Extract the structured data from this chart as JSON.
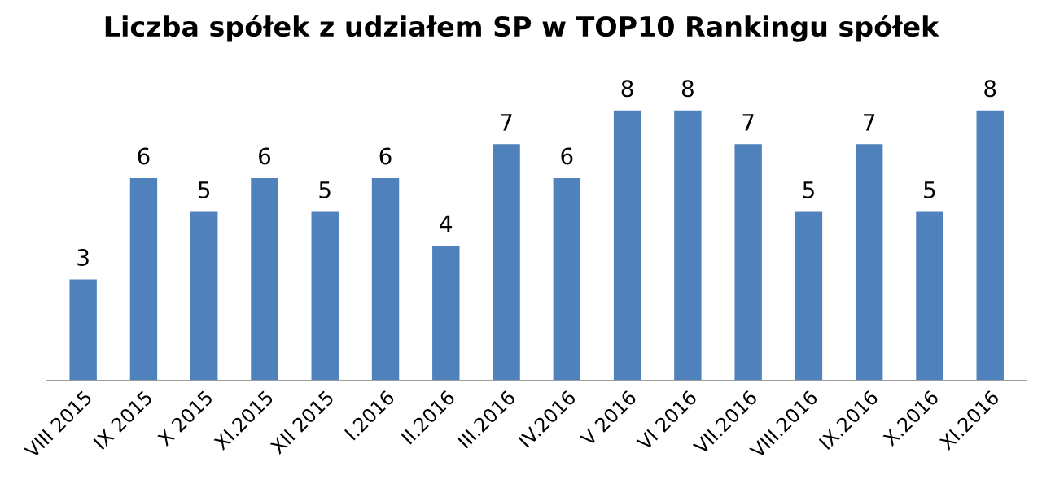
{
  "chart_data": {
    "type": "bar",
    "title": "Liczba spółek z udziałem SP w TOP10 Rankingu spółek",
    "categories": [
      "VIII 2015",
      "IX 2015",
      "X 2015",
      "XI.2015",
      "XII 2015",
      "I.2016",
      "II.2016",
      "III.2016",
      "IV.2016",
      "V 2016",
      "VI 2016",
      "VII.2016",
      "VIII.2016",
      "IX.2016",
      "X.2016",
      "XI.2016"
    ],
    "values": [
      3,
      6,
      5,
      6,
      5,
      6,
      4,
      7,
      6,
      8,
      8,
      7,
      5,
      7,
      5,
      8
    ],
    "color": "#4f81bd",
    "data_labels": true,
    "tick_labels": "x",
    "grid": false,
    "legend": false
  }
}
